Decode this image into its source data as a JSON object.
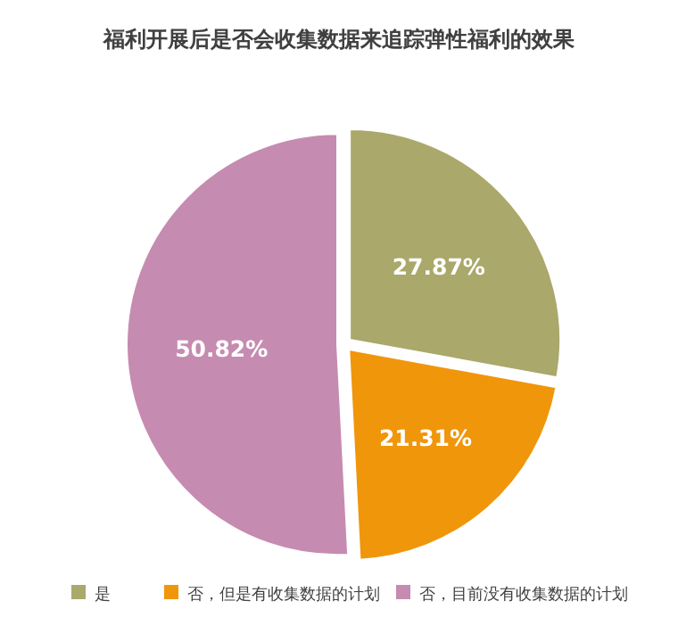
{
  "chart_data": {
    "type": "pie",
    "title": "福利开展后是否会收集数据来追踪弹性福利的效果",
    "categories": [
      "是",
      "否，但是有收集数据的计划",
      "否，目前没有收集数据的计划"
    ],
    "values": [
      27.87,
      21.31,
      50.82
    ],
    "colors": [
      "#aaa86a",
      "#f0960a",
      "#c68bb0"
    ],
    "value_labels": [
      "27.87%",
      "21.31%",
      "50.82%"
    ],
    "legend": "bottom"
  }
}
